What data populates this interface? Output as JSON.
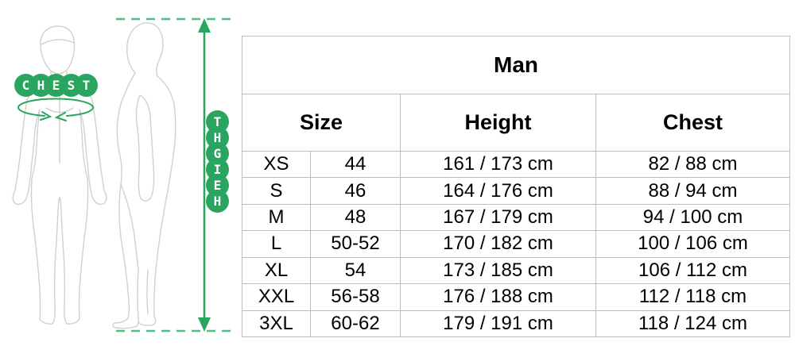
{
  "illustration": {
    "chest_label": "CHEST",
    "height_label": "HEIGHT",
    "accent_color": "#2aa55f",
    "dash_color": "#4fc083",
    "outline_color": "#d0d0d0"
  },
  "table": {
    "title": "Man",
    "headers": {
      "size": "Size",
      "height": "Height",
      "chest": "Chest"
    },
    "border_color": "#bdbdbd",
    "rows": [
      [
        "XS",
        "44",
        "161 / 173 cm",
        "82 / 88 cm"
      ],
      [
        "S",
        "46",
        "164 / 176 cm",
        "88 / 94 cm"
      ],
      [
        "M",
        "48",
        "167 / 179 cm",
        "94 / 100 cm"
      ],
      [
        "L",
        "50-52",
        "170 / 182 cm",
        "100 / 106 cm"
      ],
      [
        "XL",
        "54",
        "173 / 185 cm",
        "106 / 112 cm"
      ],
      [
        "XXL",
        "56-58",
        "176 / 188 cm",
        "112 / 118 cm"
      ],
      [
        "3XL",
        "60-62",
        "179 / 191 cm",
        "118 / 124 cm"
      ]
    ]
  }
}
